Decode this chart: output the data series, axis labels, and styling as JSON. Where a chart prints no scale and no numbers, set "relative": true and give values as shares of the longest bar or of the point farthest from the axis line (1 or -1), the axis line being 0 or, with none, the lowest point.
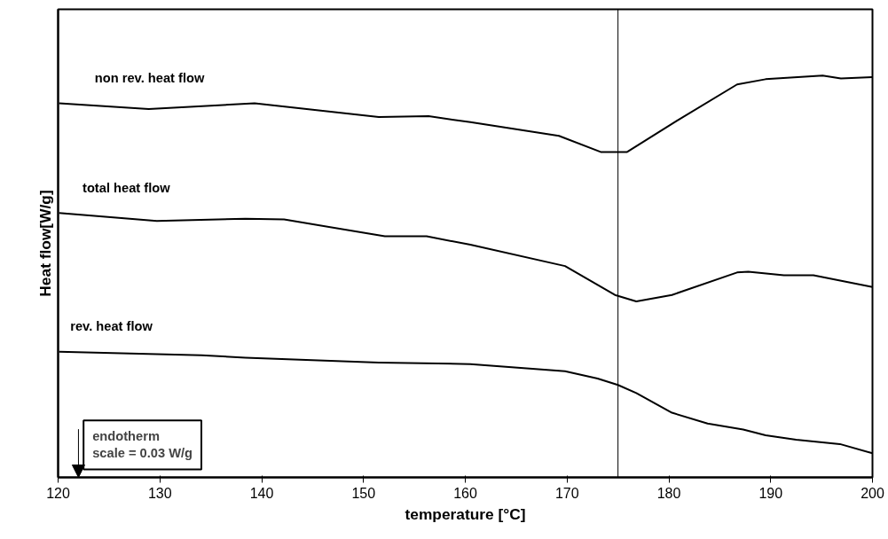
{
  "chart_data": {
    "type": "line",
    "xlabel": "temperature [°C]",
    "ylabel": "Heat flow[W/g]",
    "relative": true,
    "xlim": [
      120,
      200
    ],
    "xticks": [
      120,
      130,
      140,
      150,
      160,
      170,
      180,
      190,
      200
    ],
    "grid": false,
    "marker": "none",
    "line_style": "solid",
    "series": [
      {
        "name": "non rev. heat flow",
        "color": "#000000",
        "x": [
          120.1,
          128.9,
          139.3,
          151.5,
          156.4,
          160.5,
          169.2,
          173.3,
          175.9,
          180.8,
          186.7,
          189.5,
          195.1,
          196.9,
          200
        ],
        "values": [
          0.931,
          0.917,
          0.931,
          0.897,
          0.899,
          0.884,
          0.85,
          0.81,
          0.81,
          0.888,
          0.978,
          0.991,
          1.0,
          0.993,
          0.996
        ]
      },
      {
        "name": "total heat flow",
        "color": "#000000",
        "x": [
          120.1,
          129.7,
          138.4,
          142.2,
          152.1,
          156.2,
          160.5,
          169.8,
          174.7,
          176.8,
          180.3,
          186.7,
          187.8,
          191.3,
          194.2,
          200
        ],
        "values": [
          0.658,
          0.638,
          0.644,
          0.642,
          0.6,
          0.6,
          0.579,
          0.526,
          0.454,
          0.438,
          0.454,
          0.51,
          0.512,
          0.503,
          0.503,
          0.474
        ]
      },
      {
        "name": "rev. heat flow",
        "color": "#000000",
        "x": [
          120.1,
          134.1,
          138.4,
          151.5,
          160.5,
          169.8,
          173.0,
          175.0,
          176.8,
          180.3,
          183.8,
          187.3,
          189.5,
          192.5,
          196.8,
          200
        ],
        "values": [
          0.313,
          0.304,
          0.298,
          0.286,
          0.282,
          0.264,
          0.246,
          0.23,
          0.21,
          0.161,
          0.134,
          0.119,
          0.105,
          0.094,
          0.083,
          0.06
        ]
      }
    ],
    "ref_lines": [
      {
        "axis": "x",
        "value": 175,
        "color": "#000000"
      }
    ],
    "annotations": [
      "endotherm\nscale = 0.03 W/g"
    ]
  }
}
